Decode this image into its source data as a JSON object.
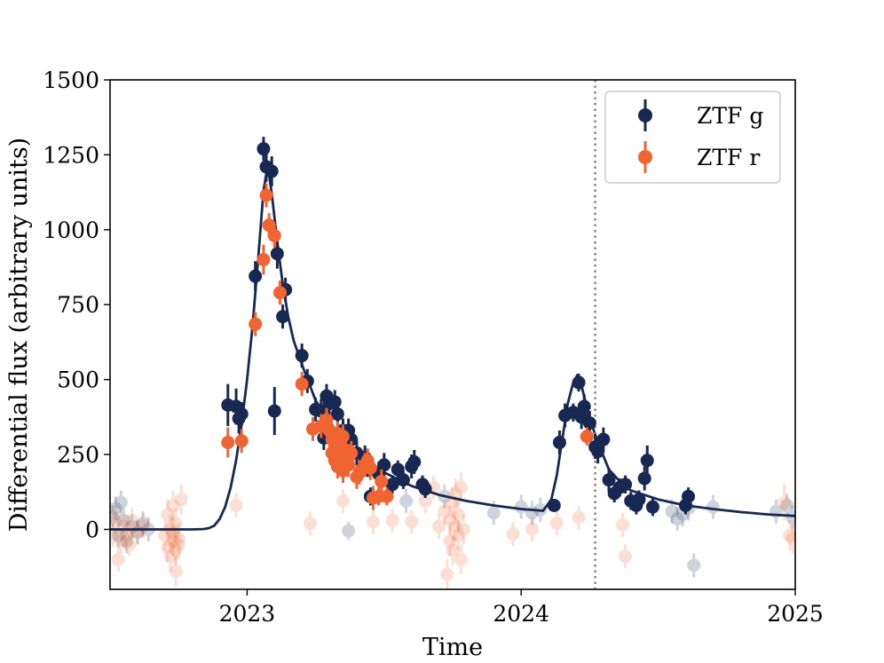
{
  "chart_data": {
    "type": "scatter",
    "xlabel": "Time",
    "ylabel": "Differential flux (arbitrary units)",
    "xlim": [
      2022.5,
      2025.0
    ],
    "ylim": [
      -200,
      1500
    ],
    "x_ticks": [
      {
        "value": 2023,
        "label": "2023"
      },
      {
        "value": 2024,
        "label": "2024"
      },
      {
        "value": 2025,
        "label": "2025"
      }
    ],
    "y_ticks": [
      {
        "value": 0,
        "label": "0"
      },
      {
        "value": 250,
        "label": "250"
      },
      {
        "value": 500,
        "label": "500"
      },
      {
        "value": 750,
        "label": "750"
      },
      {
        "value": 1000,
        "label": "1000"
      },
      {
        "value": 1250,
        "label": "1250"
      },
      {
        "value": 1500,
        "label": "1500"
      }
    ],
    "grid": false,
    "legend_position": "top-right",
    "vertical_line": {
      "x": 2024.27,
      "style": "dotted",
      "color": "#808080"
    },
    "series": [
      {
        "name": "ZTF g",
        "color": "#172852",
        "points": [
          [
            2022.93,
            415,
            70
          ],
          [
            2022.96,
            410,
            60
          ],
          [
            2022.97,
            370,
            50
          ],
          [
            2022.98,
            385,
            40
          ],
          [
            2023.03,
            845,
            50
          ],
          [
            2023.06,
            1270,
            40
          ],
          [
            2023.07,
            1210,
            50
          ],
          [
            2023.09,
            1195,
            50
          ],
          [
            2023.1,
            395,
            80
          ],
          [
            2023.11,
            920,
            50
          ],
          [
            2023.13,
            710,
            40
          ],
          [
            2023.14,
            800,
            40
          ],
          [
            2023.2,
            580,
            40
          ],
          [
            2023.22,
            495,
            40
          ],
          [
            2023.25,
            400,
            40
          ],
          [
            2023.27,
            395,
            40
          ],
          [
            2023.28,
            305,
            40
          ],
          [
            2023.29,
            445,
            40
          ],
          [
            2023.3,
            420,
            40
          ],
          [
            2023.32,
            425,
            40
          ],
          [
            2023.33,
            385,
            40
          ],
          [
            2023.35,
            330,
            40
          ],
          [
            2023.37,
            330,
            40
          ],
          [
            2023.38,
            300,
            40
          ],
          [
            2023.4,
            255,
            40
          ],
          [
            2023.43,
            240,
            40
          ],
          [
            2023.44,
            215,
            40
          ],
          [
            2023.45,
            110,
            30
          ],
          [
            2023.48,
            185,
            40
          ],
          [
            2023.5,
            215,
            40
          ],
          [
            2023.53,
            150,
            30
          ],
          [
            2023.55,
            200,
            30
          ],
          [
            2023.57,
            165,
            30
          ],
          [
            2023.6,
            210,
            40
          ],
          [
            2023.61,
            225,
            40
          ],
          [
            2023.64,
            150,
            30
          ],
          [
            2023.65,
            135,
            30
          ],
          [
            2024.12,
            80,
            20
          ],
          [
            2024.14,
            290,
            40
          ],
          [
            2024.16,
            380,
            40
          ],
          [
            2024.19,
            390,
            30
          ],
          [
            2024.21,
            490,
            30
          ],
          [
            2024.22,
            375,
            40
          ],
          [
            2024.23,
            410,
            40
          ],
          [
            2024.25,
            355,
            40
          ],
          [
            2024.27,
            275,
            40
          ],
          [
            2024.28,
            260,
            40
          ],
          [
            2024.3,
            300,
            40
          ],
          [
            2024.32,
            165,
            40
          ],
          [
            2024.34,
            120,
            30
          ],
          [
            2024.36,
            140,
            30
          ],
          [
            2024.38,
            150,
            30
          ],
          [
            2024.4,
            95,
            30
          ],
          [
            2024.42,
            80,
            30
          ],
          [
            2024.43,
            100,
            30
          ],
          [
            2024.45,
            170,
            40
          ],
          [
            2024.46,
            230,
            50
          ],
          [
            2024.48,
            75,
            30
          ],
          [
            2024.6,
            80,
            30
          ],
          [
            2024.61,
            110,
            30
          ]
        ]
      },
      {
        "name": "ZTF r",
        "color": "#ef6430",
        "points": [
          [
            2022.93,
            290,
            50
          ],
          [
            2022.98,
            295,
            40
          ],
          [
            2023.03,
            685,
            40
          ],
          [
            2023.06,
            900,
            50
          ],
          [
            2023.07,
            1115,
            40
          ],
          [
            2023.08,
            1015,
            40
          ],
          [
            2023.1,
            980,
            40
          ],
          [
            2023.12,
            790,
            40
          ],
          [
            2023.2,
            485,
            40
          ],
          [
            2023.24,
            335,
            40
          ],
          [
            2023.27,
            345,
            40
          ],
          [
            2023.29,
            365,
            40
          ],
          [
            2023.3,
            330,
            40
          ],
          [
            2023.31,
            300,
            40
          ],
          [
            2023.31,
            255,
            40
          ],
          [
            2023.32,
            280,
            40
          ],
          [
            2023.32,
            230,
            40
          ],
          [
            2023.33,
            320,
            40
          ],
          [
            2023.33,
            210,
            40
          ],
          [
            2023.34,
            270,
            40
          ],
          [
            2023.34,
            250,
            40
          ],
          [
            2023.35,
            310,
            40
          ],
          [
            2023.35,
            195,
            40
          ],
          [
            2023.36,
            265,
            40
          ],
          [
            2023.37,
            240,
            40
          ],
          [
            2023.37,
            215,
            40
          ],
          [
            2023.38,
            255,
            40
          ],
          [
            2023.4,
            175,
            40
          ],
          [
            2023.41,
            190,
            40
          ],
          [
            2023.43,
            215,
            40
          ],
          [
            2023.44,
            230,
            40
          ],
          [
            2023.45,
            205,
            40
          ],
          [
            2023.46,
            105,
            40
          ],
          [
            2023.48,
            110,
            30
          ],
          [
            2023.49,
            160,
            40
          ],
          [
            2023.51,
            110,
            30
          ],
          [
            2024.24,
            310,
            30
          ]
        ]
      }
    ],
    "faded_series": [
      {
        "name": "",
        "color": "#172852",
        "points": [
          [
            2022.51,
            40,
            40
          ],
          [
            2022.52,
            70,
            40
          ],
          [
            2022.53,
            -20,
            40
          ],
          [
            2022.54,
            90,
            40
          ],
          [
            2022.55,
            30,
            40
          ],
          [
            2022.56,
            -40,
            40
          ],
          [
            2022.58,
            10,
            40
          ],
          [
            2022.6,
            -10,
            40
          ],
          [
            2022.62,
            20,
            40
          ],
          [
            2022.64,
            0,
            40
          ],
          [
            2023.37,
            -5,
            30
          ],
          [
            2023.58,
            95,
            40
          ],
          [
            2023.72,
            110,
            40
          ],
          [
            2023.9,
            55,
            40
          ],
          [
            2024.0,
            75,
            40
          ],
          [
            2024.04,
            55,
            40
          ],
          [
            2024.07,
            65,
            40
          ],
          [
            2024.55,
            60,
            40
          ],
          [
            2024.57,
            35,
            40
          ],
          [
            2024.59,
            50,
            40
          ],
          [
            2024.61,
            70,
            40
          ],
          [
            2024.63,
            -120,
            40
          ],
          [
            2024.7,
            75,
            40
          ],
          [
            2024.93,
            60,
            40
          ],
          [
            2024.97,
            80,
            40
          ],
          [
            2024.99,
            40,
            40
          ]
        ]
      },
      {
        "name": "",
        "color": "#ef6430",
        "points": [
          [
            2022.51,
            -20,
            40
          ],
          [
            2022.52,
            30,
            50
          ],
          [
            2022.53,
            -100,
            40
          ],
          [
            2022.54,
            -40,
            40
          ],
          [
            2022.55,
            10,
            40
          ],
          [
            2022.56,
            -20,
            40
          ],
          [
            2022.57,
            -50,
            40
          ],
          [
            2022.58,
            30,
            40
          ],
          [
            2022.6,
            -10,
            40
          ],
          [
            2022.62,
            10,
            40
          ],
          [
            2022.7,
            -20,
            50
          ],
          [
            2022.71,
            -60,
            50
          ],
          [
            2022.71,
            50,
            50
          ],
          [
            2022.72,
            -90,
            50
          ],
          [
            2022.72,
            0,
            50
          ],
          [
            2022.73,
            -40,
            50
          ],
          [
            2022.73,
            -10,
            50
          ],
          [
            2022.73,
            80,
            50
          ],
          [
            2022.74,
            -70,
            50
          ],
          [
            2022.74,
            20,
            50
          ],
          [
            2022.74,
            -140,
            50
          ],
          [
            2022.75,
            -30,
            50
          ],
          [
            2022.75,
            -50,
            50
          ],
          [
            2022.76,
            100,
            50
          ],
          [
            2022.96,
            80,
            40
          ],
          [
            2023.23,
            20,
            40
          ],
          [
            2023.35,
            95,
            40
          ],
          [
            2023.46,
            25,
            40
          ],
          [
            2023.53,
            30,
            40
          ],
          [
            2023.6,
            25,
            40
          ],
          [
            2023.65,
            95,
            40
          ],
          [
            2023.68,
            140,
            40
          ],
          [
            2023.7,
            10,
            40
          ],
          [
            2023.72,
            60,
            40
          ],
          [
            2023.73,
            -150,
            50
          ],
          [
            2023.74,
            -40,
            50
          ],
          [
            2023.74,
            30,
            50
          ],
          [
            2023.75,
            -70,
            50
          ],
          [
            2023.75,
            90,
            50
          ],
          [
            2023.76,
            10,
            50
          ],
          [
            2023.76,
            120,
            50
          ],
          [
            2023.77,
            -20,
            50
          ],
          [
            2023.77,
            50,
            50
          ],
          [
            2023.78,
            -100,
            50
          ],
          [
            2023.78,
            140,
            50
          ],
          [
            2023.79,
            0,
            50
          ],
          [
            2023.97,
            -15,
            40
          ],
          [
            2024.04,
            0,
            40
          ],
          [
            2024.13,
            20,
            40
          ],
          [
            2024.21,
            40,
            40
          ],
          [
            2024.37,
            15,
            40
          ],
          [
            2024.38,
            -90,
            40
          ],
          [
            2024.96,
            90,
            60
          ],
          [
            2024.98,
            -20,
            50
          ],
          [
            2024.99,
            -30,
            50
          ]
        ]
      }
    ],
    "model_curve": {
      "color": "#172852",
      "points": [
        [
          2022.5,
          0
        ],
        [
          2022.8,
          0
        ],
        [
          2022.84,
          1
        ],
        [
          2022.86,
          4
        ],
        [
          2022.88,
          12
        ],
        [
          2022.9,
          35
        ],
        [
          2022.92,
          75
        ],
        [
          2022.94,
          140
        ],
        [
          2022.96,
          230
        ],
        [
          2022.98,
          350
        ],
        [
          2023.0,
          500
        ],
        [
          2023.02,
          680
        ],
        [
          2023.04,
          900
        ],
        [
          2023.06,
          1130
        ],
        [
          2023.075,
          1215
        ],
        [
          2023.09,
          1120
        ],
        [
          2023.11,
          960
        ],
        [
          2023.13,
          820
        ],
        [
          2023.15,
          710
        ],
        [
          2023.17,
          630
        ],
        [
          2023.2,
          550
        ],
        [
          2023.25,
          430
        ],
        [
          2023.3,
          360
        ],
        [
          2023.35,
          300
        ],
        [
          2023.4,
          250
        ],
        [
          2023.5,
          190
        ],
        [
          2023.6,
          145
        ],
        [
          2023.7,
          115
        ],
        [
          2023.8,
          95
        ],
        [
          2023.9,
          80
        ],
        [
          2024.0,
          68
        ],
        [
          2024.08,
          62
        ],
        [
          2024.11,
          100
        ],
        [
          2024.13,
          180
        ],
        [
          2024.15,
          300
        ],
        [
          2024.17,
          420
        ],
        [
          2024.19,
          490
        ],
        [
          2024.205,
          515
        ],
        [
          2024.22,
          480
        ],
        [
          2024.25,
          370
        ],
        [
          2024.28,
          290
        ],
        [
          2024.32,
          200
        ],
        [
          2024.36,
          160
        ],
        [
          2024.4,
          130
        ],
        [
          2024.5,
          100
        ],
        [
          2024.6,
          80
        ],
        [
          2024.7,
          68
        ],
        [
          2024.8,
          58
        ],
        [
          2024.9,
          50
        ],
        [
          2025.0,
          45
        ]
      ]
    }
  }
}
